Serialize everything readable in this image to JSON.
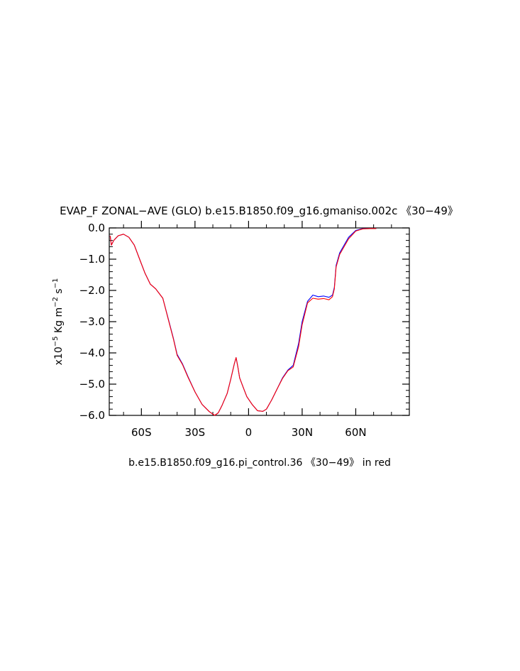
{
  "chart_data": {
    "type": "line",
    "title": "EVAP_F ZONAL−AVE (GLO) b.e15.B1850.f09_g16.gmaniso.002c 《30−49》",
    "subtitle": "b.e15.B1850.f09_g16.pi_control.36 《30−49》 in red",
    "ylabel": {
      "prefix": "x10",
      "exp1": "−5",
      "mid": " Kg m",
      "exp2": "−2",
      "mid2": " s",
      "exp3": "−1"
    },
    "xlim": [
      -78,
      90
    ],
    "ylim": [
      -6.0,
      0.0
    ],
    "x_ticks": [
      {
        "value": -60,
        "label": "60S"
      },
      {
        "value": -30,
        "label": "30S"
      },
      {
        "value": 0,
        "label": "0"
      },
      {
        "value": 30,
        "label": "30N"
      },
      {
        "value": 60,
        "label": "60N"
      }
    ],
    "y_ticks": [
      {
        "value": 0.0,
        "label": "0.0"
      },
      {
        "value": -1.0,
        "label": "−1.0"
      },
      {
        "value": -2.0,
        "label": "−2.0"
      },
      {
        "value": -3.0,
        "label": "−3.0"
      },
      {
        "value": -4.0,
        "label": "−4.0"
      },
      {
        "value": -5.0,
        "label": "−5.0"
      },
      {
        "value": -6.0,
        "label": "−6.0"
      }
    ],
    "grid": false,
    "series": [
      {
        "color": "#0000ff",
        "points": [
          [
            -77.5,
            -0.25
          ],
          [
            -76.8,
            -0.55
          ],
          [
            -75.5,
            -0.4
          ],
          [
            -73,
            -0.25
          ],
          [
            -70,
            -0.2
          ],
          [
            -67,
            -0.3
          ],
          [
            -64,
            -0.55
          ],
          [
            -61,
            -1.0
          ],
          [
            -58,
            -1.45
          ],
          [
            -55,
            -1.8
          ],
          [
            -52,
            -1.95
          ],
          [
            -48,
            -2.25
          ],
          [
            -45,
            -2.9
          ],
          [
            -42,
            -3.55
          ],
          [
            -40,
            -4.05
          ],
          [
            -37,
            -4.35
          ],
          [
            -34,
            -4.75
          ],
          [
            -30,
            -5.25
          ],
          [
            -26,
            -5.65
          ],
          [
            -22,
            -5.88
          ],
          [
            -19,
            -6.0
          ],
          [
            -17,
            -5.92
          ],
          [
            -15,
            -5.7
          ],
          [
            -12,
            -5.3
          ],
          [
            -10,
            -4.85
          ],
          [
            -8,
            -4.35
          ],
          [
            -7,
            -4.15
          ],
          [
            -6,
            -4.45
          ],
          [
            -5,
            -4.8
          ],
          [
            -3,
            -5.1
          ],
          [
            -1,
            -5.4
          ],
          [
            2,
            -5.65
          ],
          [
            5,
            -5.85
          ],
          [
            8,
            -5.87
          ],
          [
            10,
            -5.8
          ],
          [
            13,
            -5.5
          ],
          [
            16,
            -5.15
          ],
          [
            19,
            -4.8
          ],
          [
            22,
            -4.55
          ],
          [
            25,
            -4.4
          ],
          [
            28,
            -3.7
          ],
          [
            30,
            -3.0
          ],
          [
            33,
            -2.35
          ],
          [
            36,
            -2.15
          ],
          [
            39,
            -2.2
          ],
          [
            42,
            -2.18
          ],
          [
            45,
            -2.22
          ],
          [
            47,
            -2.15
          ],
          [
            48,
            -1.9
          ],
          [
            49,
            -1.2
          ],
          [
            51,
            -0.8
          ],
          [
            53,
            -0.6
          ],
          [
            56,
            -0.3
          ],
          [
            60,
            -0.08
          ],
          [
            64,
            -0.02
          ],
          [
            68,
            -0.02
          ],
          [
            71.5,
            -0.02
          ]
        ]
      },
      {
        "color": "#ff0000",
        "points": [
          [
            -77.5,
            -0.25
          ],
          [
            -76.8,
            -0.55
          ],
          [
            -75.5,
            -0.4
          ],
          [
            -73,
            -0.25
          ],
          [
            -70,
            -0.2
          ],
          [
            -67,
            -0.3
          ],
          [
            -64,
            -0.55
          ],
          [
            -61,
            -1.0
          ],
          [
            -58,
            -1.45
          ],
          [
            -55,
            -1.8
          ],
          [
            -52,
            -1.95
          ],
          [
            -48,
            -2.25
          ],
          [
            -45,
            -2.92
          ],
          [
            -42,
            -3.57
          ],
          [
            -40,
            -4.08
          ],
          [
            -37,
            -4.37
          ],
          [
            -34,
            -4.77
          ],
          [
            -30,
            -5.25
          ],
          [
            -26,
            -5.65
          ],
          [
            -22,
            -5.88
          ],
          [
            -19,
            -6.0
          ],
          [
            -17,
            -5.92
          ],
          [
            -15,
            -5.7
          ],
          [
            -12,
            -5.3
          ],
          [
            -10,
            -4.85
          ],
          [
            -8,
            -4.35
          ],
          [
            -7,
            -4.15
          ],
          [
            -6,
            -4.45
          ],
          [
            -5,
            -4.8
          ],
          [
            -3,
            -5.1
          ],
          [
            -1,
            -5.4
          ],
          [
            2,
            -5.65
          ],
          [
            5,
            -5.85
          ],
          [
            8,
            -5.87
          ],
          [
            10,
            -5.8
          ],
          [
            13,
            -5.5
          ],
          [
            16,
            -5.15
          ],
          [
            19,
            -4.82
          ],
          [
            22,
            -4.57
          ],
          [
            25,
            -4.45
          ],
          [
            28,
            -3.8
          ],
          [
            30,
            -3.1
          ],
          [
            33,
            -2.4
          ],
          [
            36,
            -2.25
          ],
          [
            39,
            -2.28
          ],
          [
            42,
            -2.26
          ],
          [
            45,
            -2.3
          ],
          [
            47,
            -2.2
          ],
          [
            48,
            -1.95
          ],
          [
            49,
            -1.25
          ],
          [
            51,
            -0.85
          ],
          [
            53,
            -0.65
          ],
          [
            56,
            -0.35
          ],
          [
            60,
            -0.1
          ],
          [
            64,
            -0.03
          ],
          [
            68,
            -0.02
          ],
          [
            71.5,
            -0.02
          ]
        ]
      }
    ]
  }
}
